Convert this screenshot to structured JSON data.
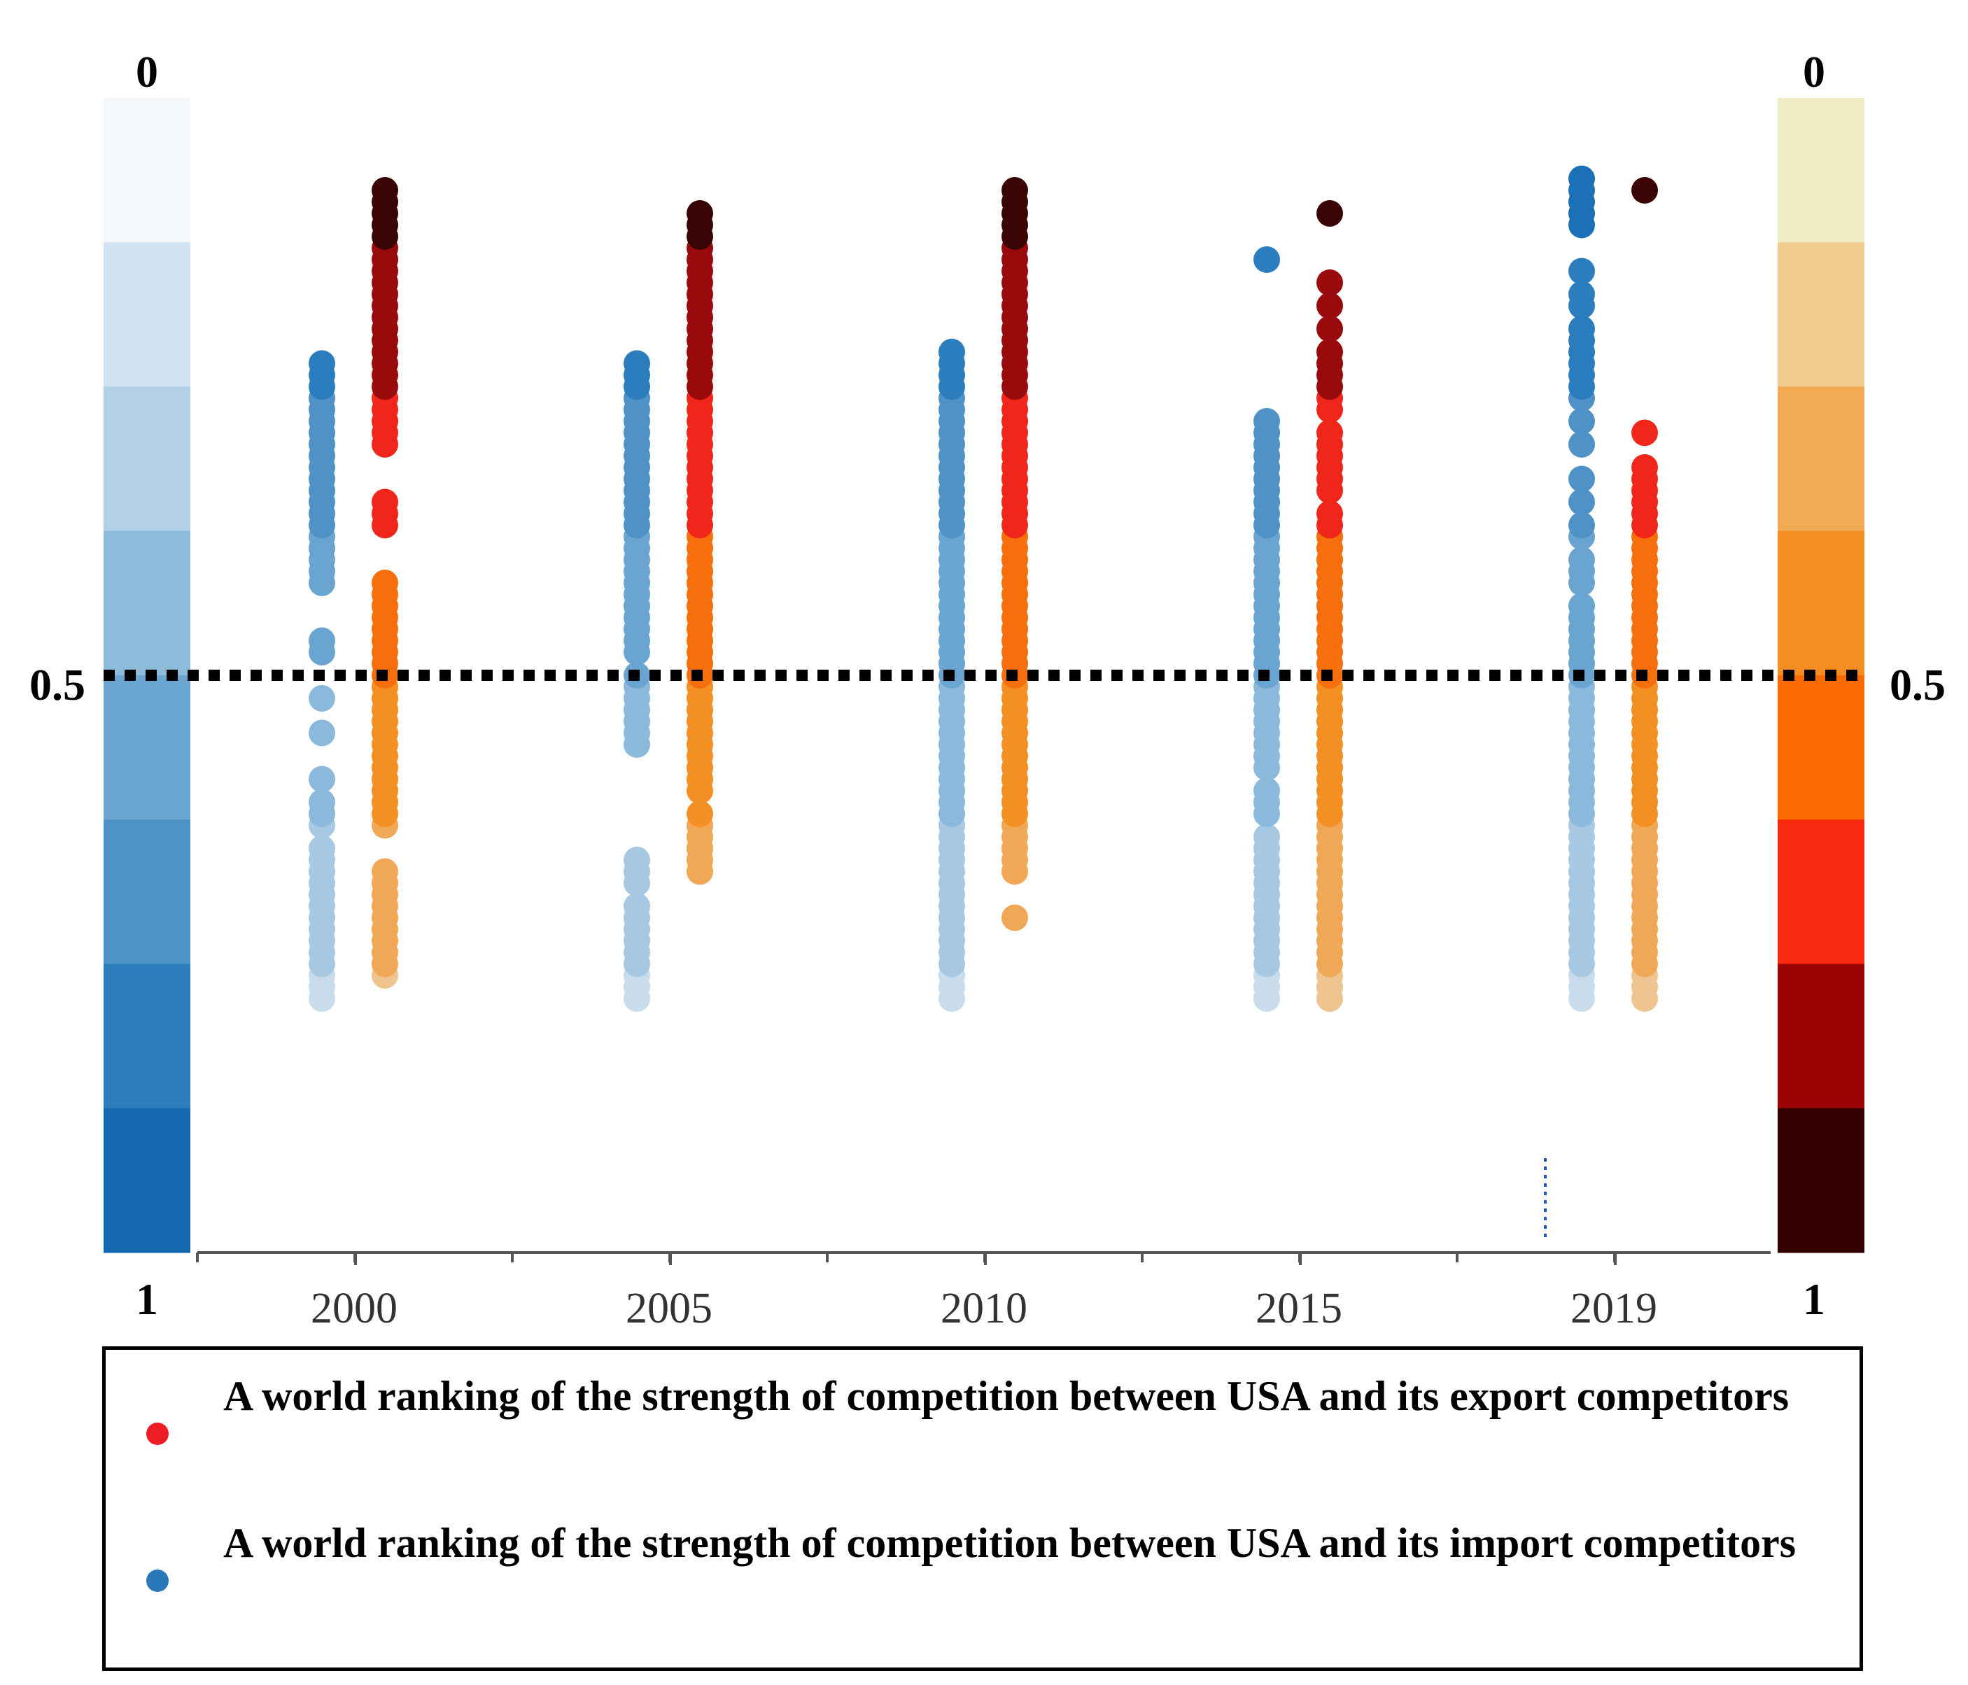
{
  "chart_data": {
    "type": "scatter",
    "title": "",
    "xlabel": "",
    "ylabel": "",
    "x_ticks": [
      "2000",
      "2005",
      "2010",
      "2015",
      "2019"
    ],
    "y_range": [
      0,
      1
    ],
    "y_inverted": true,
    "reference_line": {
      "value": 0.5,
      "style": "dotted",
      "color": "#000000"
    },
    "left_scale": {
      "top_label": "0",
      "mid_label": "0.5",
      "bottom_label": "1",
      "colors": [
        "#f4f8fb",
        "#d0e2ef",
        "#b2d1e6",
        "#8dbcdb",
        "#6ca7d2",
        "#4d93c8",
        "#2d7dbd",
        "#1469b0"
      ]
    },
    "right_scale": {
      "top_label": "0",
      "mid_label": "0.5",
      "bottom_label": "1",
      "colors": [
        "#eeedc4",
        "#f1cc8f",
        "#f3aa55",
        "#f58e22",
        "#fa6a00",
        "#f72a10",
        "#9a0405",
        "#330000"
      ]
    },
    "series": [
      {
        "name": "A world ranking of the strength of competition between USA and its import competitors",
        "color": "#2b78b8",
        "points": [
          {
            "year": "2000",
            "values": [
              0.22,
              0.23,
              0.24,
              0.25,
              0.26,
              0.27,
              0.28,
              0.29,
              0.3,
              0.31,
              0.32,
              0.33,
              0.34,
              0.35,
              0.37,
              0.38,
              0.39,
              0.41,
              0.45,
              0.48,
              0.52,
              0.53,
              0.58,
              0.59,
              0.6,
              0.61,
              0.62,
              0.63,
              0.64,
              0.65,
              0.66,
              0.67,
              0.68,
              0.69,
              0.7,
              0.71,
              0.72,
              0.73,
              0.74,
              0.75,
              0.76,
              0.77
            ]
          },
          {
            "year": "2005",
            "values": [
              0.22,
              0.23,
              0.24,
              0.25,
              0.26,
              0.27,
              0.28,
              0.29,
              0.3,
              0.32,
              0.33,
              0.34,
              0.44,
              0.45,
              0.46,
              0.47,
              0.48,
              0.49,
              0.5,
              0.52,
              0.53,
              0.54,
              0.55,
              0.56,
              0.57,
              0.58,
              0.59,
              0.6,
              0.61,
              0.62,
              0.63,
              0.64,
              0.65,
              0.66,
              0.67,
              0.68,
              0.69,
              0.7,
              0.71,
              0.72,
              0.73,
              0.74,
              0.75,
              0.76,
              0.77
            ]
          },
          {
            "year": "2010",
            "values": [
              0.22,
              0.23,
              0.24,
              0.25,
              0.26,
              0.27,
              0.28,
              0.29,
              0.3,
              0.31,
              0.32,
              0.33,
              0.34,
              0.35,
              0.36,
              0.37,
              0.38,
              0.39,
              0.4,
              0.41,
              0.42,
              0.43,
              0.44,
              0.45,
              0.46,
              0.47,
              0.48,
              0.49,
              0.5,
              0.51,
              0.52,
              0.53,
              0.54,
              0.55,
              0.56,
              0.57,
              0.58,
              0.59,
              0.6,
              0.61,
              0.62,
              0.63,
              0.64,
              0.65,
              0.66,
              0.67,
              0.68,
              0.69,
              0.7,
              0.71,
              0.72,
              0.73,
              0.74,
              0.75,
              0.76,
              0.77,
              0.78
            ]
          },
          {
            "year": "2015",
            "values": [
              0.22,
              0.23,
              0.24,
              0.25,
              0.26,
              0.27,
              0.28,
              0.29,
              0.3,
              0.31,
              0.32,
              0.33,
              0.34,
              0.35,
              0.36,
              0.38,
              0.39,
              0.4,
              0.42,
              0.43,
              0.44,
              0.45,
              0.46,
              0.47,
              0.48,
              0.49,
              0.5,
              0.51,
              0.52,
              0.53,
              0.54,
              0.55,
              0.56,
              0.57,
              0.58,
              0.59,
              0.6,
              0.61,
              0.62,
              0.63,
              0.64,
              0.65,
              0.66,
              0.67,
              0.68,
              0.69,
              0.7,
              0.71,
              0.72,
              0.86
            ]
          },
          {
            "year": "2019",
            "values": [
              0.22,
              0.23,
              0.24,
              0.25,
              0.26,
              0.27,
              0.28,
              0.29,
              0.3,
              0.31,
              0.32,
              0.33,
              0.34,
              0.35,
              0.36,
              0.37,
              0.38,
              0.39,
              0.4,
              0.41,
              0.42,
              0.43,
              0.44,
              0.45,
              0.46,
              0.47,
              0.48,
              0.49,
              0.5,
              0.51,
              0.52,
              0.53,
              0.54,
              0.55,
              0.56,
              0.58,
              0.59,
              0.6,
              0.62,
              0.63,
              0.65,
              0.67,
              0.7,
              0.72,
              0.74,
              0.75,
              0.76,
              0.77,
              0.78,
              0.79,
              0.8,
              0.82,
              0.83,
              0.85,
              0.89,
              0.9,
              0.91,
              0.92,
              0.93
            ]
          }
        ]
      },
      {
        "name": "A world ranking of the strength of competition between USA and its export competitors",
        "color": "#ee1c25",
        "points": [
          {
            "year": "2000",
            "values": [
              0.24,
              0.25,
              0.26,
              0.27,
              0.28,
              0.29,
              0.3,
              0.31,
              0.32,
              0.33,
              0.37,
              0.38,
              0.39,
              0.4,
              0.41,
              0.42,
              0.43,
              0.44,
              0.45,
              0.46,
              0.47,
              0.48,
              0.49,
              0.5,
              0.51,
              0.52,
              0.53,
              0.54,
              0.55,
              0.56,
              0.57,
              0.58,
              0.63,
              0.64,
              0.65,
              0.7,
              0.71,
              0.72,
              0.73,
              0.74,
              0.75,
              0.76,
              0.77,
              0.78,
              0.79,
              0.8,
              0.81,
              0.82,
              0.83,
              0.84,
              0.85,
              0.86,
              0.87,
              0.88,
              0.89,
              0.9,
              0.91,
              0.92
            ]
          },
          {
            "year": "2005",
            "values": [
              0.33,
              0.34,
              0.35,
              0.36,
              0.37,
              0.38,
              0.4,
              0.41,
              0.42,
              0.43,
              0.44,
              0.45,
              0.46,
              0.47,
              0.48,
              0.49,
              0.5,
              0.51,
              0.52,
              0.53,
              0.54,
              0.55,
              0.56,
              0.57,
              0.58,
              0.59,
              0.6,
              0.61,
              0.62,
              0.63,
              0.64,
              0.65,
              0.66,
              0.67,
              0.68,
              0.69,
              0.7,
              0.71,
              0.72,
              0.73,
              0.74,
              0.75,
              0.76,
              0.77,
              0.78,
              0.79,
              0.8,
              0.81,
              0.82,
              0.83,
              0.84,
              0.85,
              0.86,
              0.87,
              0.88,
              0.89,
              0.9
            ]
          },
          {
            "year": "2010",
            "values": [
              0.29,
              0.33,
              0.34,
              0.35,
              0.36,
              0.37,
              0.38,
              0.39,
              0.4,
              0.41,
              0.42,
              0.43,
              0.44,
              0.45,
              0.46,
              0.47,
              0.48,
              0.49,
              0.5,
              0.51,
              0.52,
              0.53,
              0.54,
              0.55,
              0.56,
              0.57,
              0.58,
              0.59,
              0.6,
              0.61,
              0.62,
              0.63,
              0.64,
              0.65,
              0.66,
              0.67,
              0.68,
              0.69,
              0.7,
              0.71,
              0.72,
              0.73,
              0.74,
              0.75,
              0.76,
              0.77,
              0.78,
              0.79,
              0.8,
              0.81,
              0.82,
              0.83,
              0.84,
              0.85,
              0.86,
              0.87,
              0.88,
              0.89,
              0.9,
              0.91,
              0.92
            ]
          },
          {
            "year": "2015",
            "values": [
              0.22,
              0.23,
              0.24,
              0.25,
              0.26,
              0.27,
              0.28,
              0.29,
              0.3,
              0.31,
              0.32,
              0.33,
              0.34,
              0.35,
              0.36,
              0.37,
              0.38,
              0.39,
              0.4,
              0.41,
              0.42,
              0.43,
              0.44,
              0.45,
              0.46,
              0.47,
              0.48,
              0.49,
              0.5,
              0.51,
              0.52,
              0.53,
              0.54,
              0.55,
              0.56,
              0.57,
              0.58,
              0.59,
              0.6,
              0.61,
              0.62,
              0.63,
              0.64,
              0.66,
              0.67,
              0.68,
              0.69,
              0.7,
              0.71,
              0.73,
              0.74,
              0.75,
              0.76,
              0.77,
              0.78,
              0.8,
              0.82,
              0.84,
              0.9
            ]
          },
          {
            "year": "2019",
            "values": [
              0.22,
              0.23,
              0.24,
              0.25,
              0.26,
              0.27,
              0.28,
              0.29,
              0.3,
              0.31,
              0.32,
              0.33,
              0.34,
              0.35,
              0.36,
              0.37,
              0.38,
              0.39,
              0.4,
              0.41,
              0.42,
              0.43,
              0.44,
              0.45,
              0.46,
              0.47,
              0.48,
              0.49,
              0.5,
              0.51,
              0.52,
              0.53,
              0.54,
              0.55,
              0.56,
              0.57,
              0.58,
              0.59,
              0.6,
              0.61,
              0.62,
              0.63,
              0.64,
              0.65,
              0.66,
              0.67,
              0.68,
              0.71,
              0.92
            ]
          }
        ]
      }
    ],
    "legend": [
      {
        "label": "A world ranking of the strength of competition between USA and its export competitors",
        "color": "#ee1c25"
      },
      {
        "label": "A world ranking of the strength of competition between USA and its import competitors",
        "color": "#2b78b8"
      }
    ]
  }
}
